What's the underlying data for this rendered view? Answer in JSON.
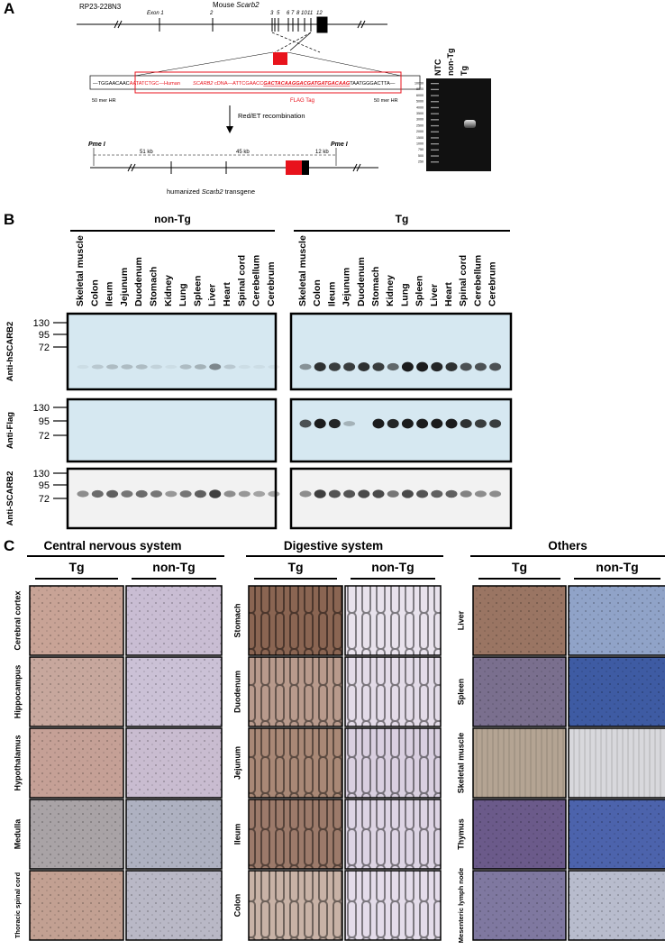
{
  "panel_a": {
    "label": "A",
    "bac": "RP23-228N3",
    "gene_prefix": "Mouse",
    "gene": "Scarb2",
    "exon_labels": [
      "Exon 1",
      "2",
      "3",
      "5",
      "6",
      "7",
      "8",
      "10",
      "11",
      "12"
    ],
    "construct": {
      "left_seq": "—TGGAACAAC",
      "human_seq": "AATATCTGC—",
      "human_label": "Human",
      "cdna_gene": "SCARB2",
      "cdna_label": "cDNA",
      "mid_seq": "—ATTCGAACC",
      "flag_seq": "GACTACAAGGACGATGATGACAAG",
      "right_seq": "TAATGGGACTTA—",
      "left_hr": "50 mer HR",
      "flag_tag": "FLAG Tag",
      "right_hr": "50 mer HR"
    },
    "recombination": "Red/ET recombination",
    "transgene": {
      "pme_left": "Pme I",
      "pme_right": "Pme I",
      "seg1": "51 kb",
      "seg2": "45 kb",
      "seg3": "12 kb",
      "caption_prefix": "humanized",
      "caption_gene": "Scarb2",
      "caption_suffix": "transgene"
    },
    "gel": {
      "lanes": [
        "NTC",
        "non-Tg",
        "Tg"
      ],
      "ladder": [
        10000,
        8000,
        6000,
        5000,
        4000,
        3500,
        3000,
        2500,
        2000,
        1500,
        1000,
        750,
        500,
        250
      ]
    }
  },
  "panel_b": {
    "label": "B",
    "groups": [
      "non-Tg",
      "Tg"
    ],
    "tissues": [
      "Skeletal muscle",
      "Colon",
      "Ileum",
      "Jejunum",
      "Duodenum",
      "Stomach",
      "Kidney",
      "Lung",
      "Spleen",
      "Liver",
      "Heart",
      "Spinal cord",
      "Cerebellum",
      "Cerebrum"
    ],
    "blots": [
      {
        "antibody": "Anti-hSCARB2",
        "markers": [
          130,
          95,
          72
        ]
      },
      {
        "antibody": "Anti-Flag",
        "markers": [
          130,
          95,
          72
        ]
      },
      {
        "antibody": "Anti-SCARB2",
        "markers": [
          130,
          95,
          72
        ]
      }
    ]
  },
  "panel_c": {
    "label": "C",
    "columns": [
      "Tg",
      "non-Tg"
    ],
    "sections": [
      {
        "title": "Central nervous system",
        "rows": [
          "Cerebral cortex",
          "Hippocampus",
          "Hypothalamus",
          "Medulla",
          "Thoracic spinal cord"
        ]
      },
      {
        "title": "Digestive system",
        "rows": [
          "Stomach",
          "Duodenum",
          "Jejunum",
          "Ileum",
          "Colon"
        ]
      },
      {
        "title": "Others",
        "rows": [
          "Liver",
          "Spleen",
          "Skeletal muscle",
          "Thymus",
          "Mesenteric lymph node"
        ]
      }
    ]
  }
}
